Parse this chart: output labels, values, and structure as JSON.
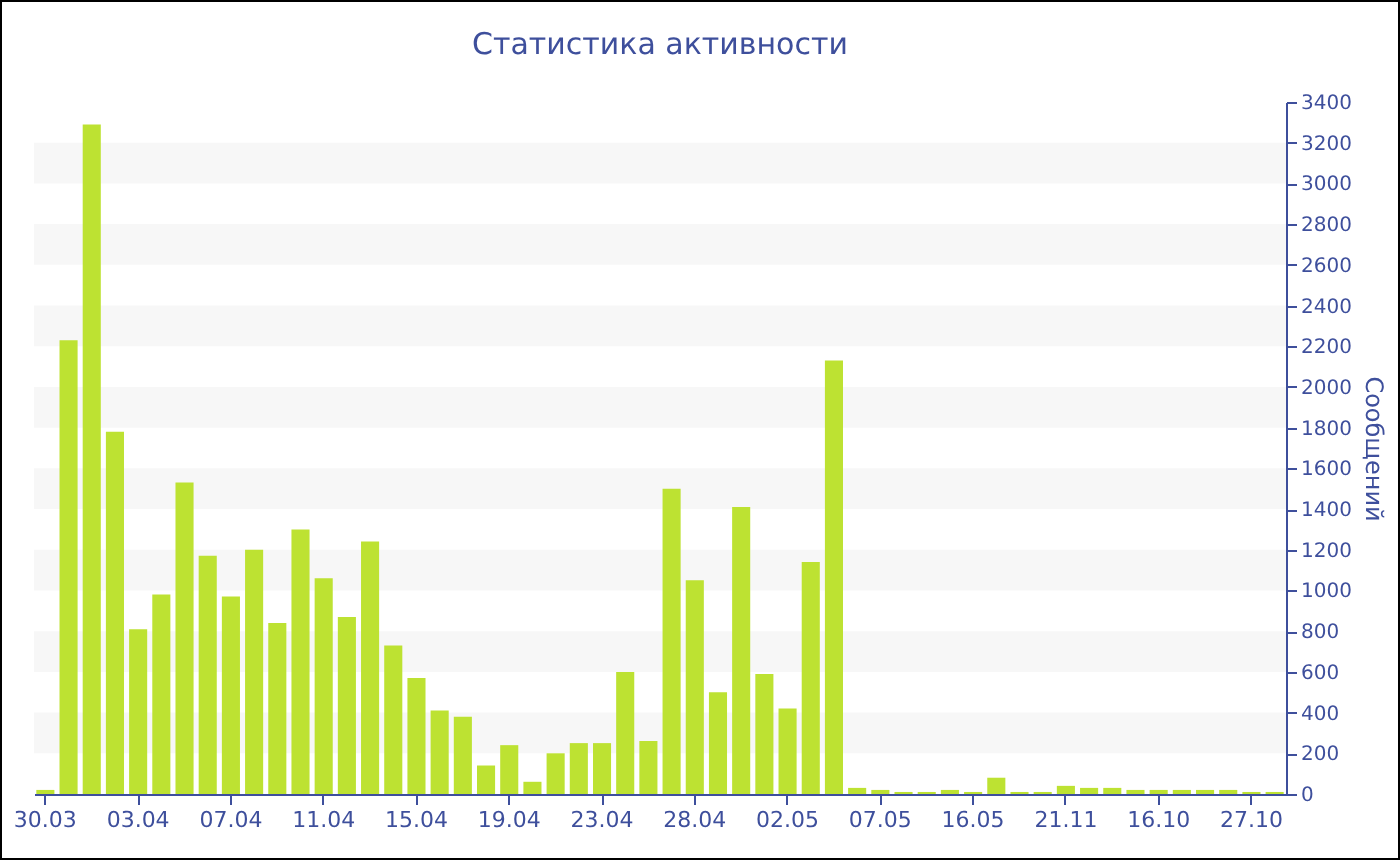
{
  "chart_data": {
    "type": "bar",
    "title": "Статистика активности",
    "ylabel": "Сообщений",
    "categories": [
      "30.03",
      null,
      null,
      null,
      "03.04",
      null,
      null,
      null,
      "07.04",
      null,
      null,
      null,
      "11.04",
      null,
      null,
      null,
      "15.04",
      null,
      null,
      null,
      "19.04",
      null,
      null,
      null,
      "23.04",
      null,
      null,
      null,
      "28.04",
      null,
      null,
      null,
      "02.05",
      null,
      null,
      null,
      "07.05",
      null,
      null,
      null,
      "16.05",
      null,
      null,
      null,
      "21.11",
      null,
      null,
      null,
      "16.10",
      null,
      null,
      null,
      "27.10",
      null
    ],
    "values": [
      20,
      2230,
      3290,
      1780,
      810,
      980,
      1530,
      1170,
      970,
      1200,
      840,
      1300,
      1060,
      870,
      1240,
      730,
      570,
      410,
      380,
      140,
      240,
      60,
      200,
      250,
      250,
      600,
      260,
      1500,
      1050,
      500,
      1410,
      590,
      420,
      1140,
      2130,
      30,
      20,
      10,
      10,
      20,
      10,
      80,
      10,
      10,
      40,
      30,
      30,
      20,
      20,
      20,
      20,
      20,
      10,
      10
    ],
    "color": "#bde232",
    "ylim": [
      0,
      3400
    ],
    "yticks": [
      0,
      200,
      400,
      600,
      800,
      1000,
      1200,
      1400,
      1600,
      1800,
      2000,
      2200,
      2400,
      2600,
      2800,
      3000,
      3200,
      3400
    ],
    "grid": false,
    "bands": [
      {
        "axis": "y",
        "from": 200,
        "to": 400,
        "color": "#f7f7f7"
      },
      {
        "axis": "y",
        "from": 600,
        "to": 800,
        "color": "#f7f7f7"
      },
      {
        "axis": "y",
        "from": 1000,
        "to": 1200,
        "color": "#f7f7f7"
      },
      {
        "axis": "y",
        "from": 1400,
        "to": 1600,
        "color": "#f7f7f7"
      },
      {
        "axis": "y",
        "from": 1800,
        "to": 2000,
        "color": "#f7f7f7"
      },
      {
        "axis": "y",
        "from": 2200,
        "to": 2400,
        "color": "#f7f7f7"
      },
      {
        "axis": "y",
        "from": 2600,
        "to": 2800,
        "color": "#f7f7f7"
      },
      {
        "axis": "y",
        "from": 3000,
        "to": 3200,
        "color": "#f7f7f7"
      }
    ]
  }
}
